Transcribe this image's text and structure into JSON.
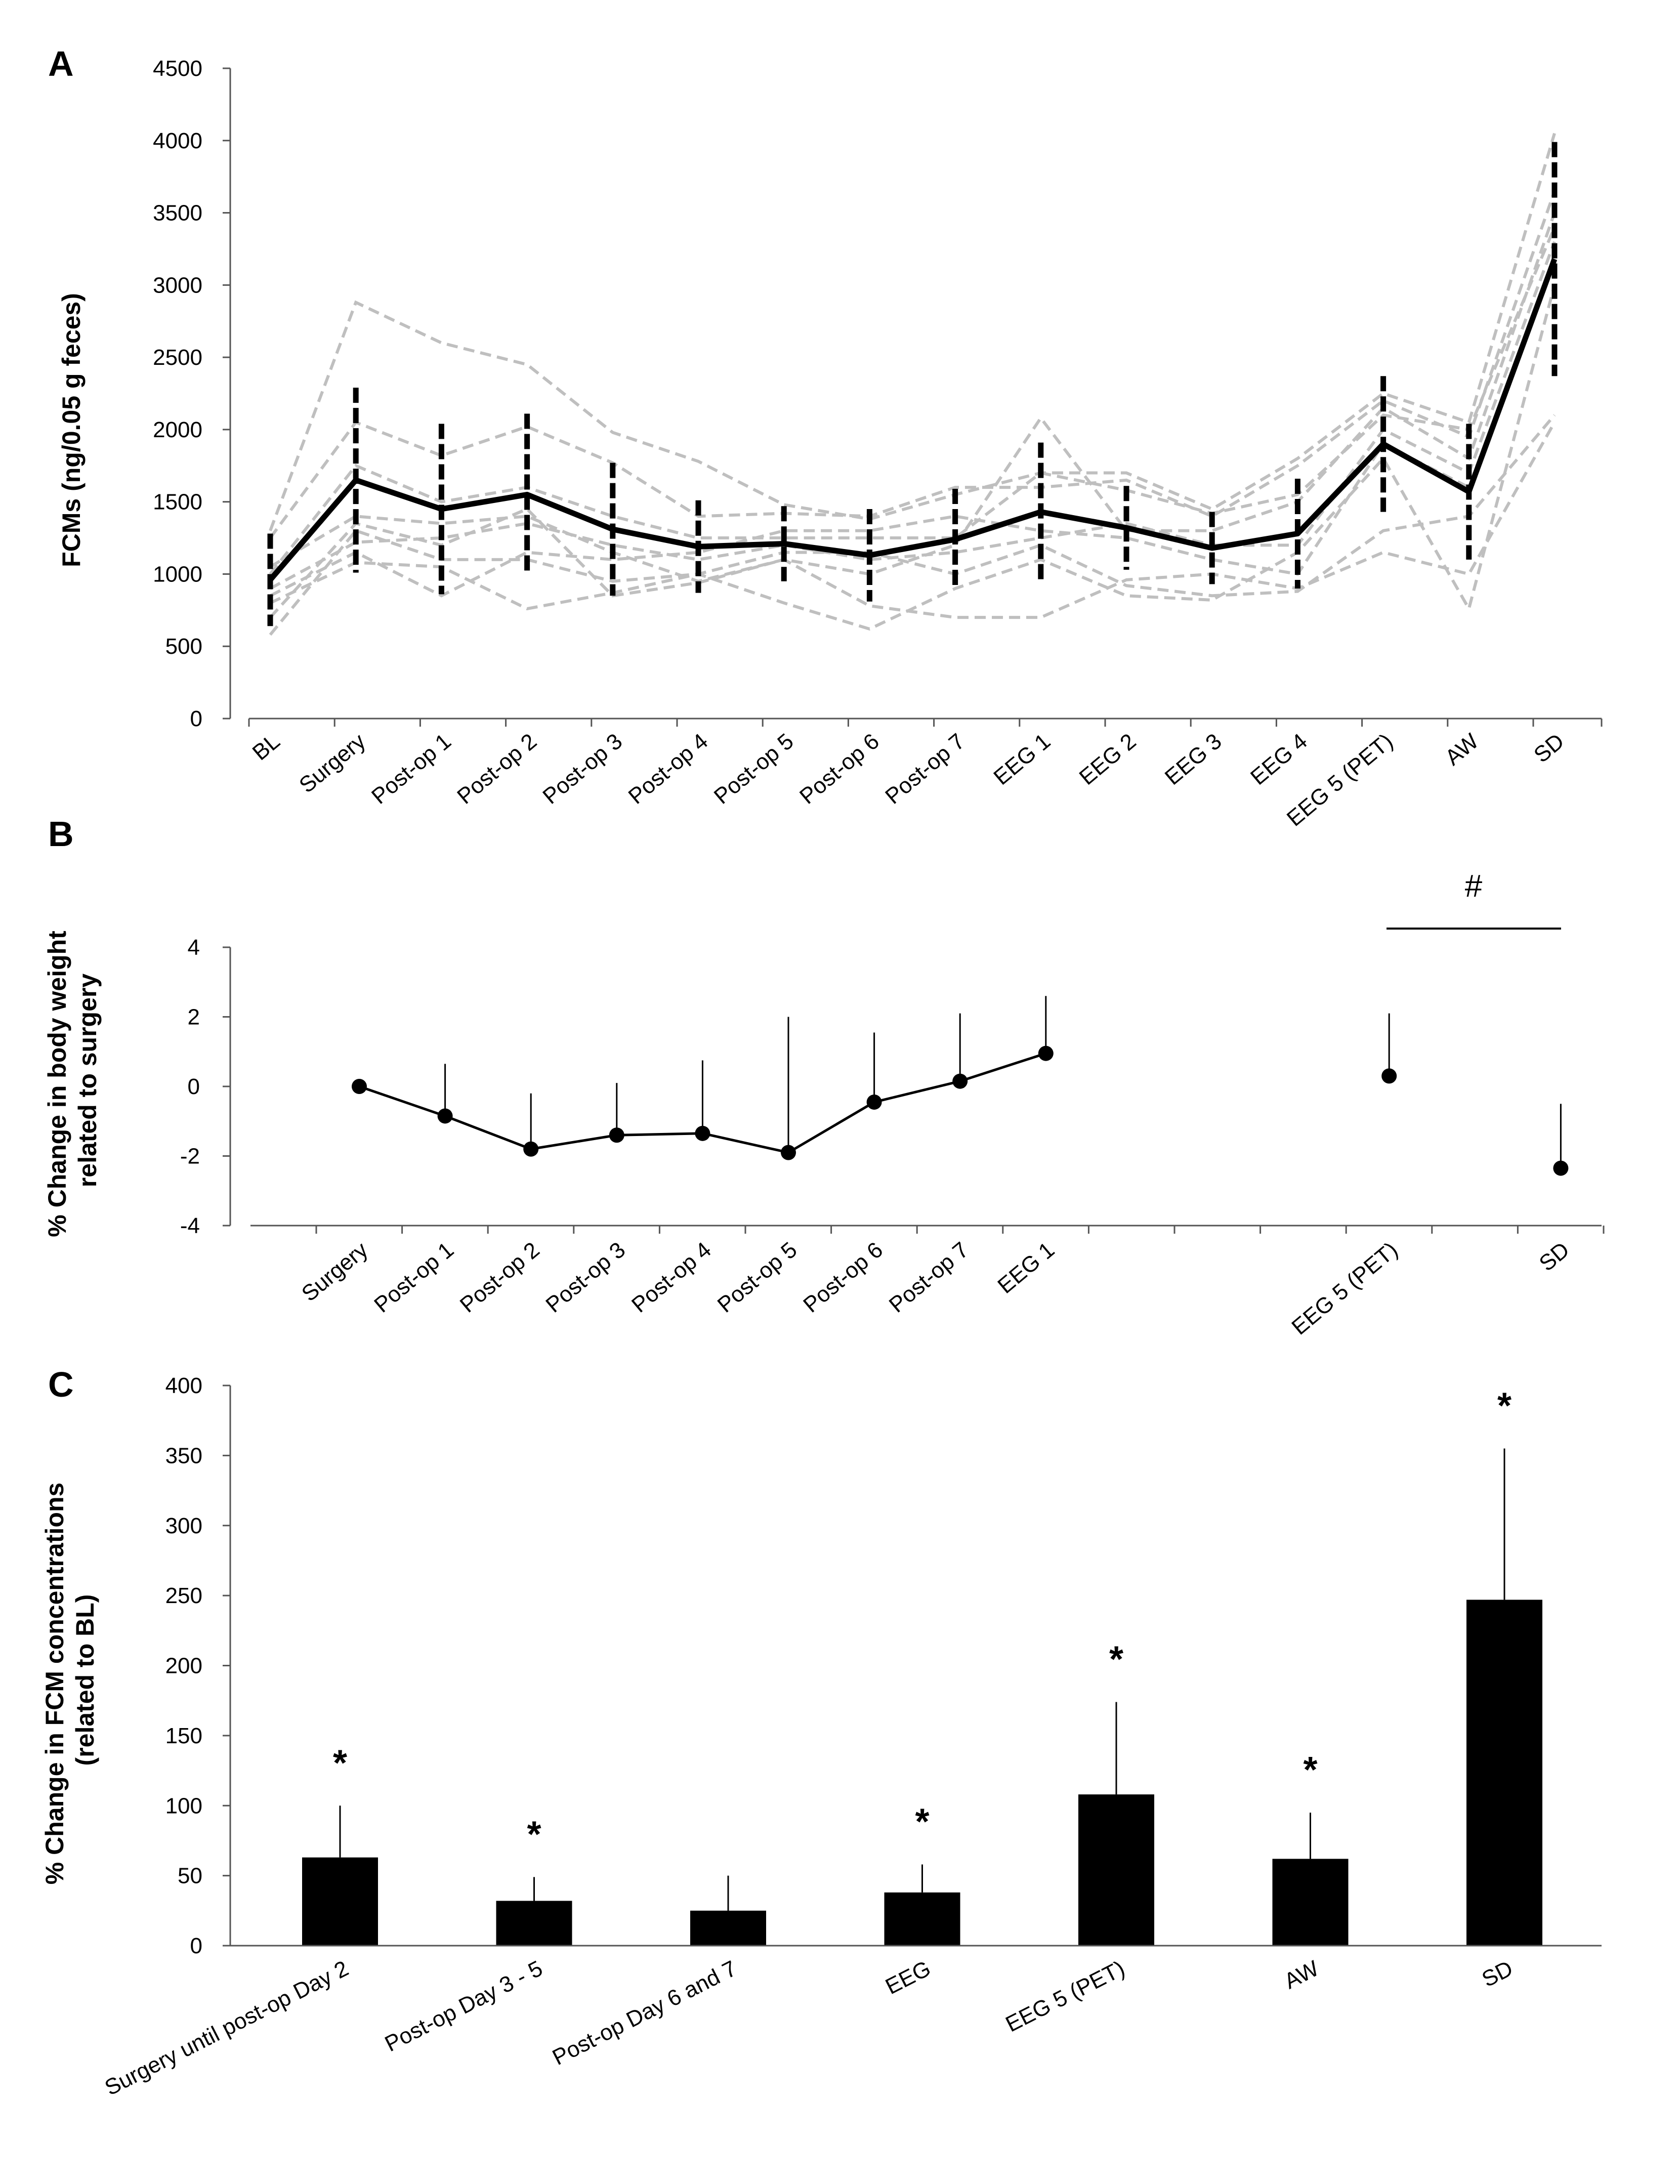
{
  "chart_data": [
    {
      "panel": "A",
      "type": "line",
      "ylabel": "FCMs (ng/0.05 g feces)",
      "ylim": [
        0,
        4500
      ],
      "yticks": [
        0,
        500,
        1000,
        1500,
        2000,
        2500,
        3000,
        3500,
        4000,
        4500
      ],
      "categories": [
        "BL",
        "Surgery",
        "Post-op 1",
        "Post-op 2",
        "Post-op 3",
        "Post-op 4",
        "Post-op 5",
        "Post-op 6",
        "Post-op 7",
        "EEG 1",
        "EEG 2",
        "EEG 3",
        "EEG 4",
        "EEG 5 (PET)",
        "AW",
        "SD"
      ],
      "mean": [
        960,
        1650,
        1450,
        1550,
        1310,
        1190,
        1210,
        1130,
        1240,
        1430,
        1320,
        1180,
        1280,
        1900,
        1570,
        3180
      ],
      "error": [
        320,
        640,
        590,
        560,
        460,
        320,
        260,
        320,
        350,
        480,
        290,
        250,
        380,
        470,
        470,
        810
      ],
      "individuals": [
        [
          1300,
          2880,
          2600,
          2450,
          1980,
          1780,
          1480,
          1380,
          1550,
          1700,
          1700,
          1450,
          1800,
          2250,
          2050,
          4050
        ],
        [
          1250,
          2050,
          1820,
          2020,
          1770,
          1400,
          1420,
          1400,
          1600,
          1600,
          1650,
          1400,
          1750,
          2200,
          1950,
          3650
        ],
        [
          1050,
          1400,
          1350,
          1400,
          1150,
          950,
          1100,
          1000,
          1200,
          2080,
          1300,
          1300,
          1500,
          2150,
          1800,
          3500
        ],
        [
          1000,
          1750,
          1500,
          1600,
          1400,
          1250,
          1250,
          1250,
          1250,
          1700,
          1580,
          1420,
          1550,
          2100,
          2000,
          3400
        ],
        [
          900,
          1220,
          1250,
          1350,
          1200,
          1100,
          1200,
          1100,
          1150,
          1250,
          1350,
          1200,
          1200,
          2000,
          1700,
          3300
        ],
        [
          850,
          1150,
          850,
          1150,
          1100,
          1150,
          1300,
          1300,
          1400,
          1300,
          1250,
          1100,
          1000,
          1900,
          1600,
          3200
        ],
        [
          800,
          1080,
          1050,
          760,
          870,
          1000,
          1150,
          1150,
          1000,
          1200,
          920,
          850,
          880,
          1300,
          1400,
          2100
        ],
        [
          700,
          1350,
          1200,
          1450,
          850,
          940,
          1100,
          780,
          700,
          700,
          960,
          1000,
          900,
          1150,
          1000,
          2050
        ],
        [
          580,
          1300,
          1100,
          1100,
          950,
          1000,
          800,
          620,
          900,
          1100,
          850,
          820,
          1150,
          1800,
          760,
          3000
        ]
      ]
    },
    {
      "panel": "B",
      "type": "line",
      "ylabel": "% Change in body weight related to surgery",
      "ylim": [
        -4,
        4
      ],
      "yticks": [
        -4,
        -2,
        0,
        2,
        4
      ],
      "categories": [
        "Surgery",
        "Post-op 1",
        "Post-op 2",
        "Post-op 3",
        "Post-op 4",
        "Post-op 5",
        "Post-op 6",
        "Post-op 7",
        "EEG 1",
        "",
        "",
        "",
        "EEG 5 (PET)",
        "",
        "SD"
      ],
      "values": [
        0,
        -0.85,
        -1.8,
        -1.4,
        -1.35,
        -1.9,
        -0.45,
        0.15,
        0.95,
        null,
        null,
        null,
        0.3,
        null,
        -2.35
      ],
      "error": [
        null,
        1.5,
        1.6,
        1.5,
        2.1,
        3.9,
        2.0,
        1.95,
        1.65,
        null,
        null,
        null,
        1.8,
        null,
        1.85
      ],
      "annotation": "#"
    },
    {
      "panel": "C",
      "type": "bar",
      "ylabel": "% Change in FCM concentrations (related to BL)",
      "ylim": [
        0,
        400
      ],
      "yticks": [
        0,
        50,
        100,
        150,
        200,
        250,
        300,
        350,
        400
      ],
      "categories": [
        "Surgery until post-op Day 2",
        "Post-op Day 3 - 5",
        "Post-op Day 6 and 7",
        "EEG",
        "EEG 5 (PET)",
        "AW",
        "SD"
      ],
      "values": [
        63,
        32,
        25,
        38,
        108,
        62,
        247
      ],
      "error": [
        37,
        17,
        25,
        20,
        66,
        33,
        108
      ],
      "significance": [
        "*",
        "*",
        "",
        "*",
        "*",
        "*",
        "*"
      ]
    }
  ]
}
